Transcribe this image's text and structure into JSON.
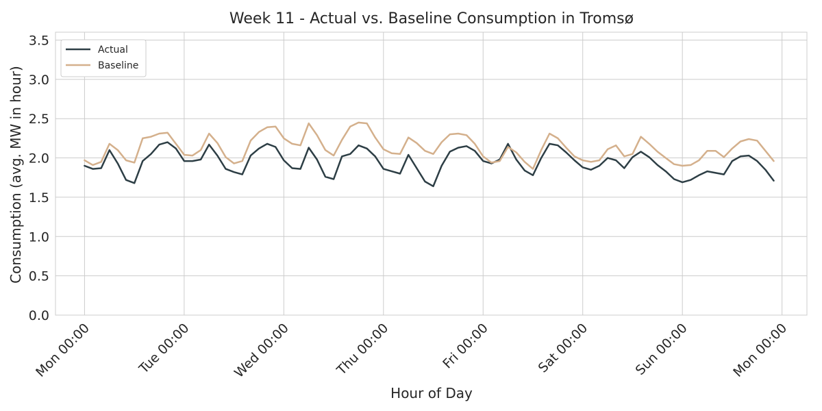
{
  "chart_data": {
    "type": "line",
    "title": "Week 11 - Actual vs. Baseline Consumption in Tromsø",
    "xlabel": "Hour of Day",
    "ylabel": "Consumption (avg. MW in hour)",
    "xlim": [
      -7,
      174
    ],
    "ylim": [
      0,
      3.6
    ],
    "x_ticks": [
      {
        "hour": 0,
        "label": "Mon 00:00"
      },
      {
        "hour": 24,
        "label": "Tue 00:00"
      },
      {
        "hour": 48,
        "label": "Wed 00:00"
      },
      {
        "hour": 72,
        "label": "Thu 00:00"
      },
      {
        "hour": 96,
        "label": "Fri 00:00"
      },
      {
        "hour": 120,
        "label": "Sat 00:00"
      },
      {
        "hour": 144,
        "label": "Sun 00:00"
      },
      {
        "hour": 168,
        "label": "Mon 00:00"
      }
    ],
    "y_ticks": [
      "0.0",
      "0.5",
      "1.0",
      "1.5",
      "2.0",
      "2.5",
      "3.0",
      "3.5"
    ],
    "grid": true,
    "legend_position": "top-left",
    "series": [
      {
        "name": "Actual",
        "color": "#2d3e45",
        "points": [
          [
            0,
            1.9
          ],
          [
            2,
            1.86
          ],
          [
            4,
            1.87
          ],
          [
            6,
            2.1
          ],
          [
            8,
            1.93
          ],
          [
            10,
            1.72
          ],
          [
            12,
            1.68
          ],
          [
            14,
            1.96
          ],
          [
            16,
            2.05
          ],
          [
            18,
            2.17
          ],
          [
            20,
            2.2
          ],
          [
            22,
            2.12
          ],
          [
            24,
            1.96
          ],
          [
            26,
            1.96
          ],
          [
            28,
            1.98
          ],
          [
            30,
            2.17
          ],
          [
            32,
            2.03
          ],
          [
            34,
            1.86
          ],
          [
            36,
            1.82
          ],
          [
            38,
            1.79
          ],
          [
            40,
            2.03
          ],
          [
            42,
            2.12
          ],
          [
            44,
            2.18
          ],
          [
            46,
            2.14
          ],
          [
            48,
            1.97
          ],
          [
            50,
            1.87
          ],
          [
            52,
            1.86
          ],
          [
            54,
            2.13
          ],
          [
            56,
            1.98
          ],
          [
            58,
            1.76
          ],
          [
            60,
            1.73
          ],
          [
            62,
            2.02
          ],
          [
            64,
            2.05
          ],
          [
            66,
            2.16
          ],
          [
            68,
            2.12
          ],
          [
            70,
            2.02
          ],
          [
            72,
            1.86
          ],
          [
            74,
            1.83
          ],
          [
            76,
            1.8
          ],
          [
            78,
            2.04
          ],
          [
            80,
            1.87
          ],
          [
            82,
            1.7
          ],
          [
            84,
            1.64
          ],
          [
            86,
            1.9
          ],
          [
            88,
            2.08
          ],
          [
            90,
            2.13
          ],
          [
            92,
            2.15
          ],
          [
            94,
            2.09
          ],
          [
            96,
            1.96
          ],
          [
            98,
            1.93
          ],
          [
            100,
            1.98
          ],
          [
            102,
            2.18
          ],
          [
            104,
            1.98
          ],
          [
            106,
            1.84
          ],
          [
            108,
            1.78
          ],
          [
            110,
            2.0
          ],
          [
            112,
            2.18
          ],
          [
            114,
            2.16
          ],
          [
            116,
            2.07
          ],
          [
            118,
            1.97
          ],
          [
            120,
            1.88
          ],
          [
            122,
            1.85
          ],
          [
            124,
            1.9
          ],
          [
            126,
            2.0
          ],
          [
            128,
            1.97
          ],
          [
            130,
            1.87
          ],
          [
            132,
            2.01
          ],
          [
            134,
            2.08
          ],
          [
            136,
            2.01
          ],
          [
            138,
            1.91
          ],
          [
            140,
            1.83
          ],
          [
            142,
            1.73
          ],
          [
            144,
            1.69
          ],
          [
            146,
            1.72
          ],
          [
            148,
            1.78
          ],
          [
            150,
            1.83
          ],
          [
            152,
            1.81
          ],
          [
            154,
            1.79
          ],
          [
            156,
            1.96
          ],
          [
            158,
            2.02
          ],
          [
            160,
            2.03
          ],
          [
            162,
            1.96
          ],
          [
            164,
            1.85
          ],
          [
            166,
            1.71
          ]
        ]
      },
      {
        "name": "Baseline",
        "color": "#d4b08c",
        "points": [
          [
            0,
            1.97
          ],
          [
            2,
            1.91
          ],
          [
            4,
            1.95
          ],
          [
            6,
            2.18
          ],
          [
            8,
            2.1
          ],
          [
            10,
            1.97
          ],
          [
            12,
            1.94
          ],
          [
            14,
            2.25
          ],
          [
            16,
            2.27
          ],
          [
            18,
            2.31
          ],
          [
            20,
            2.32
          ],
          [
            22,
            2.18
          ],
          [
            24,
            2.04
          ],
          [
            26,
            2.03
          ],
          [
            28,
            2.1
          ],
          [
            30,
            2.31
          ],
          [
            32,
            2.19
          ],
          [
            34,
            2.01
          ],
          [
            36,
            1.93
          ],
          [
            38,
            1.96
          ],
          [
            40,
            2.22
          ],
          [
            42,
            2.33
          ],
          [
            44,
            2.39
          ],
          [
            46,
            2.4
          ],
          [
            48,
            2.25
          ],
          [
            50,
            2.18
          ],
          [
            52,
            2.16
          ],
          [
            54,
            2.44
          ],
          [
            56,
            2.29
          ],
          [
            58,
            2.1
          ],
          [
            60,
            2.03
          ],
          [
            62,
            2.23
          ],
          [
            64,
            2.4
          ],
          [
            66,
            2.45
          ],
          [
            68,
            2.44
          ],
          [
            70,
            2.26
          ],
          [
            72,
            2.11
          ],
          [
            74,
            2.06
          ],
          [
            76,
            2.05
          ],
          [
            78,
            2.26
          ],
          [
            80,
            2.19
          ],
          [
            82,
            2.09
          ],
          [
            84,
            2.05
          ],
          [
            86,
            2.2
          ],
          [
            88,
            2.3
          ],
          [
            90,
            2.31
          ],
          [
            92,
            2.29
          ],
          [
            94,
            2.18
          ],
          [
            96,
            2.02
          ],
          [
            98,
            1.94
          ],
          [
            100,
            1.96
          ],
          [
            102,
            2.14
          ],
          [
            104,
            2.07
          ],
          [
            106,
            1.95
          ],
          [
            108,
            1.86
          ],
          [
            110,
            2.1
          ],
          [
            112,
            2.31
          ],
          [
            114,
            2.25
          ],
          [
            116,
            2.13
          ],
          [
            118,
            2.02
          ],
          [
            120,
            1.97
          ],
          [
            122,
            1.95
          ],
          [
            124,
            1.97
          ],
          [
            126,
            2.11
          ],
          [
            128,
            2.16
          ],
          [
            130,
            2.02
          ],
          [
            132,
            2.05
          ],
          [
            134,
            2.27
          ],
          [
            136,
            2.18
          ],
          [
            138,
            2.08
          ],
          [
            140,
            2.0
          ],
          [
            142,
            1.92
          ],
          [
            144,
            1.9
          ],
          [
            146,
            1.91
          ],
          [
            148,
            1.97
          ],
          [
            150,
            2.09
          ],
          [
            152,
            2.09
          ],
          [
            154,
            2.01
          ],
          [
            156,
            2.12
          ],
          [
            158,
            2.21
          ],
          [
            160,
            2.24
          ],
          [
            162,
            2.22
          ],
          [
            164,
            2.09
          ],
          [
            166,
            1.96
          ]
        ]
      }
    ]
  }
}
